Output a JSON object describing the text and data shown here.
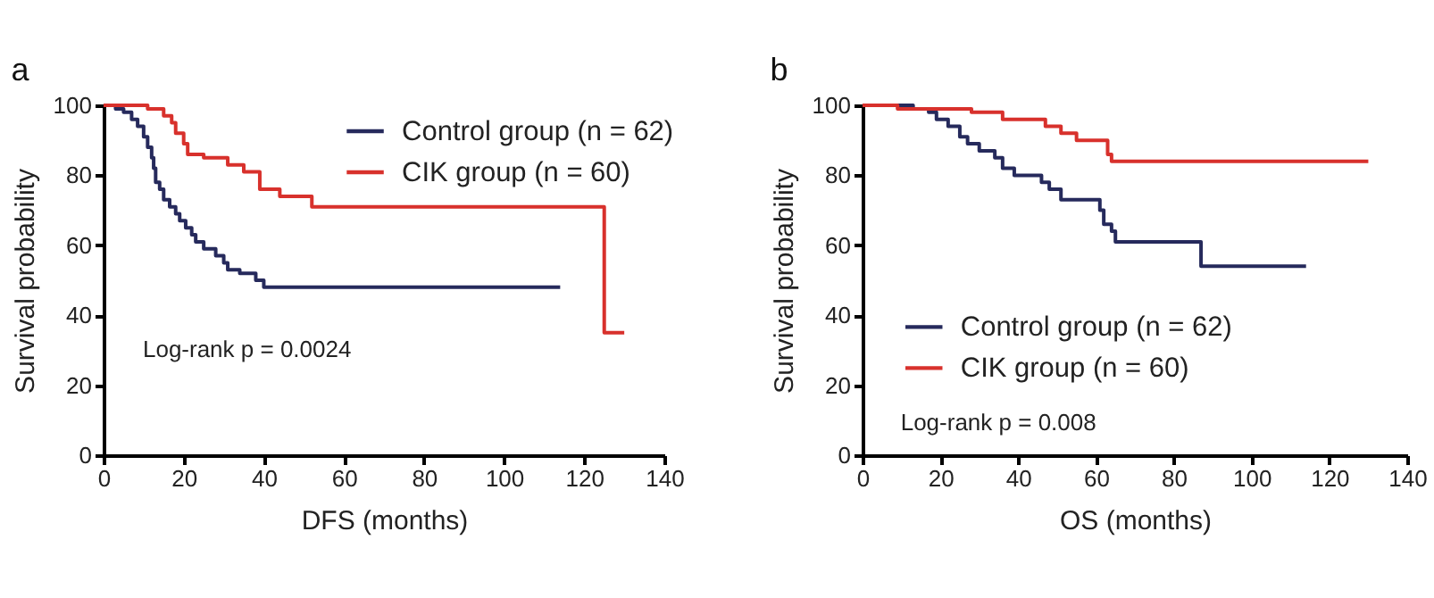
{
  "chart_data": [
    {
      "type": "step",
      "title": "a",
      "xlabel": "DFS (months)",
      "ylabel": "Survival probability",
      "xlim": [
        0,
        140
      ],
      "xticks": [
        0,
        20,
        40,
        60,
        80,
        100,
        120,
        140
      ],
      "ylim": [
        0,
        100
      ],
      "yticks": [
        0,
        20,
        40,
        60,
        80,
        100
      ],
      "grid": false,
      "legend": "top right",
      "annotations": [
        "Log-rank p = 0.0024"
      ],
      "series": [
        {
          "name": "Control group (n = 62)",
          "color": "#262a5c",
          "x": [
            0,
            3,
            5,
            7,
            8.5,
            10,
            11,
            12,
            12.5,
            13,
            14,
            15,
            16.5,
            18,
            19,
            20.5,
            22,
            23,
            25,
            28,
            30,
            31,
            34,
            38,
            40,
            114
          ],
          "values": [
            100,
            99,
            98,
            96,
            94,
            91,
            88,
            85,
            82,
            78,
            76,
            73,
            71,
            69,
            67,
            65,
            63,
            61,
            59,
            57,
            55,
            53,
            52,
            50,
            48,
            48
          ]
        },
        {
          "name": "CIK group (n = 60)",
          "color": "#d8312c",
          "x": [
            0,
            11,
            15,
            17,
            18,
            20,
            21,
            25,
            31,
            35,
            39,
            44,
            52,
            125,
            130
          ],
          "values": [
            100,
            99,
            97,
            95,
            92,
            89,
            86,
            85,
            83,
            81,
            76,
            74,
            71,
            35,
            35
          ]
        }
      ]
    },
    {
      "type": "step",
      "title": "b",
      "xlabel": "OS (months)",
      "ylabel": "Survival probability",
      "xlim": [
        0,
        140
      ],
      "xticks": [
        0,
        20,
        40,
        60,
        80,
        100,
        120,
        140
      ],
      "ylim": [
        0,
        100
      ],
      "yticks": [
        0,
        20,
        40,
        60,
        80,
        100
      ],
      "grid": false,
      "legend": "bottom left",
      "annotations": [
        "Log-rank p = 0.008"
      ],
      "series": [
        {
          "name": "Control group (n = 62)",
          "color": "#262a5c",
          "x": [
            0,
            13,
            17,
            19,
            22,
            25,
            27,
            30,
            34,
            36,
            39,
            46,
            48,
            51,
            61,
            62,
            64,
            65,
            87,
            114
          ],
          "values": [
            100,
            99,
            98,
            96,
            94,
            91,
            89,
            87,
            85,
            82,
            80,
            78,
            76,
            73,
            70,
            66,
            64,
            61,
            54,
            54
          ]
        },
        {
          "name": "CIK group (n = 60)",
          "color": "#d8312c",
          "x": [
            0,
            9,
            28,
            36,
            47,
            51,
            55,
            63,
            64,
            130
          ],
          "values": [
            100,
            99,
            98,
            96,
            94,
            92,
            90,
            86,
            84,
            84
          ]
        }
      ]
    }
  ]
}
